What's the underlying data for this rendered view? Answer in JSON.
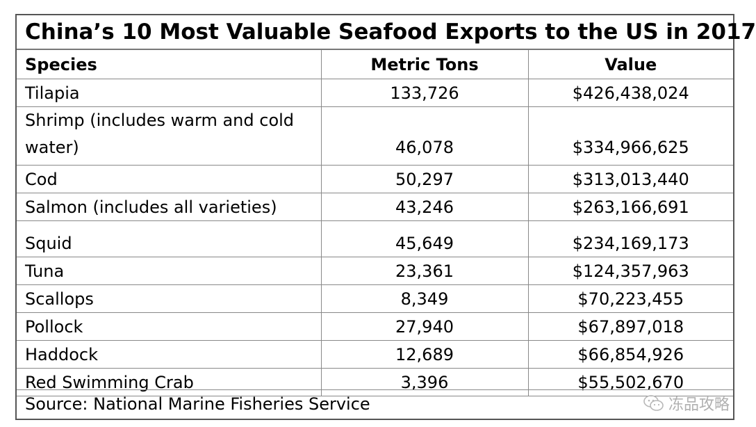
{
  "title": "China’s 10 Most Valuable Seafood Exports to the US in 2017",
  "headers": {
    "species": "Species",
    "tons": "Metric Tons",
    "value": "Value"
  },
  "rows": [
    {
      "species": "Tilapia",
      "tons": "133,726",
      "value": "$426,438,024"
    },
    {
      "species": "Shrimp (includes warm and cold water)",
      "tons": "46,078",
      "value": "$334,966,625"
    },
    {
      "species": "Cod",
      "tons": "50,297",
      "value": "$313,013,440"
    },
    {
      "species": "Salmon (includes all varieties)",
      "tons": "43,246",
      "value": "$263,166,691"
    },
    {
      "species": "Squid",
      "tons": "45,649",
      "value": "$234,169,173"
    },
    {
      "species": "Tuna",
      "tons": "23,361",
      "value": "$124,357,963"
    },
    {
      "species": "Scallops",
      "tons": "8,349",
      "value": "$70,223,455"
    },
    {
      "species": "Pollock",
      "tons": "27,940",
      "value": "$67,897,018"
    },
    {
      "species": "Haddock",
      "tons": "12,689",
      "value": "$66,854,926"
    },
    {
      "species": "Red Swimming Crab",
      "tons": "3,396",
      "value": "$55,502,670"
    }
  ],
  "source": "Source: National Marine Fisheries Service",
  "watermark": {
    "text": "冻品攻略",
    "icon": "wechat-icon"
  }
}
